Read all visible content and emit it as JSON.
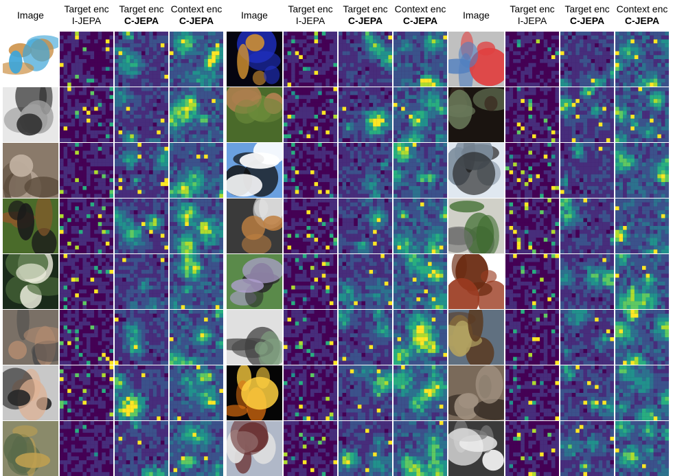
{
  "header_labels": {
    "image": "Image",
    "target_enc": "Target enc",
    "context_enc": "Context enc",
    "ijepa": "I-JEPA",
    "cjepa": "C-JEPA"
  },
  "column_groups": [
    {
      "images": [
        {
          "name": "ice-cream-cone",
          "colors": [
            "#ffffff",
            "#3ea5d8",
            "#c98a3b"
          ]
        },
        {
          "name": "waffle-iron",
          "colors": [
            "#e8e8e8",
            "#2a2a2a",
            "#a0a0a0"
          ]
        },
        {
          "name": "person-with-lemurs",
          "colors": [
            "#8a7a6a",
            "#5a4a3a",
            "#c0b0a0"
          ]
        },
        {
          "name": "dog-on-grass",
          "colors": [
            "#4a6b2a",
            "#1a1a1a",
            "#8a5a2a"
          ]
        },
        {
          "name": "white-butterfly",
          "colors": [
            "#1a2a1a",
            "#f0f0e0",
            "#4a6a3a"
          ]
        },
        {
          "name": "rock-pipe",
          "colors": [
            "#7a7066",
            "#b08a70",
            "#4a4a4a"
          ]
        },
        {
          "name": "man-with-baby",
          "colors": [
            "#c8c8c8",
            "#2a2a2a",
            "#e0b090"
          ]
        },
        {
          "name": "dog-in-stream",
          "colors": [
            "#8a8a6a",
            "#c0a050",
            "#5a6a4a"
          ]
        }
      ]
    },
    {
      "images": [
        {
          "name": "night-lights",
          "colors": [
            "#050510",
            "#2030c0",
            "#d09030"
          ]
        },
        {
          "name": "deer-in-field",
          "colors": [
            "#4a6a2a",
            "#b08050",
            "#6a8a3a"
          ]
        },
        {
          "name": "street-lamp-sky",
          "colors": [
            "#6aa0e0",
            "#ffffff",
            "#101010"
          ]
        },
        {
          "name": "dog-at-desk",
          "colors": [
            "#3a3a3a",
            "#c08040",
            "#e0e0e0"
          ]
        },
        {
          "name": "insect-on-flower",
          "colors": [
            "#5a8a4a",
            "#b0a0d0",
            "#2a2a2a"
          ]
        },
        {
          "name": "metal-hinge",
          "colors": [
            "#e0e0e0",
            "#80a080",
            "#404040"
          ]
        },
        {
          "name": "jack-o-lantern",
          "colors": [
            "#050505",
            "#e07010",
            "#ffd040"
          ]
        },
        {
          "name": "small-bird",
          "colors": [
            "#b0b8c8",
            "#6a3030",
            "#e0e0e0"
          ]
        }
      ]
    },
    {
      "images": [
        {
          "name": "missile-display",
          "colors": [
            "#c0c0c0",
            "#e04040",
            "#5080c0"
          ]
        },
        {
          "name": "bear",
          "colors": [
            "#1a1410",
            "#6a7a5a",
            "#3a2a20"
          ]
        },
        {
          "name": "skier-on-slope",
          "colors": [
            "#e0e8f0",
            "#202020",
            "#8090a0"
          ]
        },
        {
          "name": "green-tool",
          "colors": [
            "#d0d0c8",
            "#3a6a2a",
            "#707070"
          ]
        },
        {
          "name": "clay-teapots",
          "colors": [
            "#ffffff",
            "#9a3a20",
            "#6a2a10"
          ]
        },
        {
          "name": "pirate-ship",
          "colors": [
            "#607080",
            "#5a3a20",
            "#b0a060"
          ]
        },
        {
          "name": "tangled-wire",
          "colors": [
            "#7a6a5a",
            "#a09080",
            "#3a3028"
          ]
        },
        {
          "name": "sewing-machine-sign",
          "colors": [
            "#3a3a3a",
            "#f0f0f0",
            "#808080"
          ]
        }
      ]
    }
  ]
}
